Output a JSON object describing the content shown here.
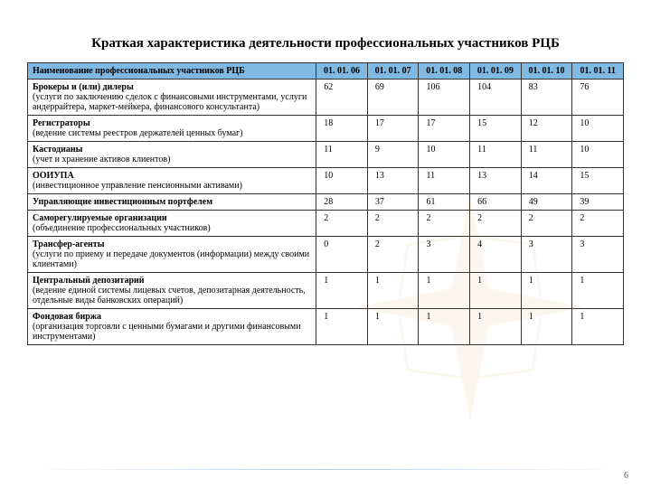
{
  "title": "Краткая характеристика деятельности профессиональных участников РЦБ",
  "page_number": "6",
  "table": {
    "type": "table",
    "header_bg": "#7fb8e0",
    "border_color": "#333333",
    "background_color": "#ffffff",
    "font_family": "Times New Roman",
    "title_fontsize": 15,
    "cell_fontsize": 10,
    "first_col_width": 310,
    "date_col_width": 55,
    "columns": [
      "Наименование профессиональных участников РЦБ",
      "01. 01. 06",
      "01. 01. 07",
      "01. 01. 08",
      "01. 01. 09",
      "01. 01. 10",
      "01. 01. 11"
    ],
    "rows": [
      {
        "title": "Брокеры и (или) дилеры",
        "desc": "(услуги по заключению сделок с финансовыми инструментами, услуги андеррайтера, маркет-мейкера, финансового консультанта)",
        "values": [
          "62",
          "69",
          "106",
          "104",
          "83",
          "76"
        ]
      },
      {
        "title": "Регистраторы",
        "desc": "(ведение системы реестров держателей ценных бумаг)",
        "values": [
          "18",
          "17",
          "17",
          "15",
          "12",
          "10"
        ]
      },
      {
        "title": "Кастодианы",
        "desc": "(учет и хранение активов клиентов)",
        "values": [
          "11",
          "9",
          "10",
          "11",
          "11",
          "10"
        ]
      },
      {
        "title": "ООИУПА",
        "desc": "(инвестиционное управление пенсионными активами)",
        "values": [
          "10",
          "13",
          "11",
          "13",
          "14",
          "15"
        ]
      },
      {
        "title": "Управляющие инвестиционным портфелем",
        "desc": "",
        "values": [
          "28",
          "37",
          "61",
          "66",
          "49",
          "39"
        ]
      },
      {
        "title": "Саморегулируемые организации",
        "desc": "(объединение профессиональных участников)",
        "values": [
          "2",
          "2",
          "2",
          "2",
          "2",
          "2"
        ]
      },
      {
        "title": "Трансфер-агенты",
        "desc": "(услуги по приему и передаче документов (информации) между своими клиентами)",
        "values": [
          "0",
          "2",
          "3",
          "4",
          "3",
          "3"
        ]
      },
      {
        "title": "Центральный депозитарий",
        "desc": "(ведение единой системы лицевых счетов, депозитарная деятельность, отдельные виды банковских операций)",
        "values": [
          "1",
          "1",
          "1",
          "1",
          "1",
          "1"
        ]
      },
      {
        "title": "Фондовая биржа",
        "desc": "(организация торговли с ценными бумагами и другими финансовыми инструментами)",
        "values": [
          "1",
          "1",
          "1",
          "1",
          "1",
          "1"
        ]
      }
    ]
  }
}
